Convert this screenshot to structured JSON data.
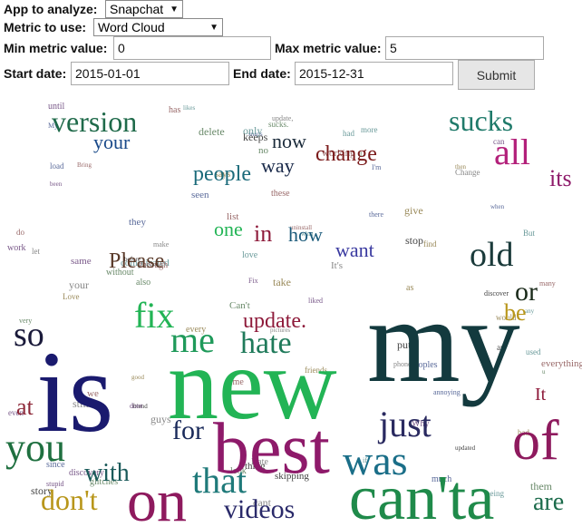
{
  "form": {
    "app_label": "App to analyze:",
    "app_value": "Snapchat",
    "metric_label": "Metric to use:",
    "metric_value": "Word Cloud",
    "min_label": "Min metric value:",
    "min_value": "0",
    "max_label": "Max metric value:",
    "max_value": "5",
    "start_label": "Start date:",
    "start_value": "2015-01-01",
    "end_label": "End date:",
    "end_value": "2015-12-31",
    "submit_label": "Submit"
  },
  "cloud_words": [
    {
      "text": "is",
      "color": "#1a1a6e"
    },
    {
      "text": "new",
      "color": "#22b455"
    },
    {
      "text": "my",
      "color": "#133a3e"
    },
    {
      "text": "best",
      "color": "#8e1a6a"
    },
    {
      "text": "can'ta",
      "color": "#1f8a4a"
    },
    {
      "text": "of",
      "color": "#8e1a5e"
    },
    {
      "text": "on",
      "color": "#8e1a5e"
    },
    {
      "text": "you",
      "color": "#1f7040"
    },
    {
      "text": "was",
      "color": "#1a6e88"
    },
    {
      "text": "just",
      "color": "#2a2a60"
    },
    {
      "text": "fix",
      "color": "#22b455"
    },
    {
      "text": "me",
      "color": "#1f9a5a"
    },
    {
      "text": "hate",
      "color": "#1f7a5a"
    },
    {
      "text": "so",
      "color": "#1a1a3a"
    },
    {
      "text": "that",
      "color": "#1f7a7a"
    },
    {
      "text": "don't",
      "color": "#b8961a"
    },
    {
      "text": "all",
      "color": "#b3207a"
    },
    {
      "text": "sucks",
      "color": "#1f7a6a"
    },
    {
      "text": "version",
      "color": "#1f6a4a"
    },
    {
      "text": "old",
      "color": "#1a3a3a"
    },
    {
      "text": "videos",
      "color": "#2a2a6a"
    },
    {
      "text": "with",
      "color": "#1a5a5a"
    },
    {
      "text": "update.",
      "color": "#8e1a3a"
    },
    {
      "text": "for",
      "color": "#1a2a5a"
    },
    {
      "text": "at",
      "color": "#8e2a3a"
    },
    {
      "text": "people",
      "color": "#1a6a7a"
    },
    {
      "text": "change",
      "color": "#7a1a1a"
    },
    {
      "text": "Please",
      "color": "#5a3a2a"
    },
    {
      "text": "now",
      "color": "#1a2a3a"
    },
    {
      "text": "its",
      "color": "#8e1a6a"
    },
    {
      "text": "or",
      "color": "#1a2a1a"
    },
    {
      "text": "be",
      "color": "#b8961a"
    },
    {
      "text": "are",
      "color": "#1a6a4a"
    },
    {
      "text": "in",
      "color": "#8e1a3a"
    },
    {
      "text": "how",
      "color": "#1a5a7a"
    },
    {
      "text": "want",
      "color": "#3a3aa0"
    },
    {
      "text": "one",
      "color": "#22b455"
    },
    {
      "text": "your",
      "color": "#1a4a8a"
    },
    {
      "text": "way",
      "color": "#1a2a4a"
    },
    {
      "text": "It",
      "color": "#8e1a3a"
    }
  ],
  "tiny_words": [
    "pictures",
    "also",
    "since",
    "list",
    "more",
    "good",
    "liked",
    "story",
    "your",
    "without",
    "there",
    "many",
    "what",
    "find",
    "stupid",
    "discover",
    "It's",
    "it.",
    "snaps",
    "time",
    "But",
    "take",
    "Fix",
    "friend",
    "guys",
    "them",
    "peoples",
    "do",
    "complicated",
    "give",
    "work",
    "keeps",
    "Hate",
    "no",
    "when",
    "we",
    "if",
    "then",
    "until",
    "updated",
    "update,",
    "sucks.",
    "they",
    "Bring",
    "had",
    "Love",
    "even",
    "stop",
    "phone",
    "delete",
    "My",
    "has",
    "love",
    "would",
    "discovery",
    "skipping",
    "cant",
    "Can't",
    "much",
    "everything",
    "only",
    "friends.",
    "Why",
    "thing",
    "let",
    "u",
    "I'm",
    "uninstall",
    "any",
    "says",
    "dont",
    "an",
    "Change",
    "look",
    "load",
    "through",
    "likes",
    "as",
    "can",
    "before",
    "still",
    "very",
    "seen",
    "these",
    "being",
    "bad",
    "been",
    "put",
    "make",
    "glitches",
    "annoying",
    "working",
    "used",
    "every",
    "same"
  ]
}
